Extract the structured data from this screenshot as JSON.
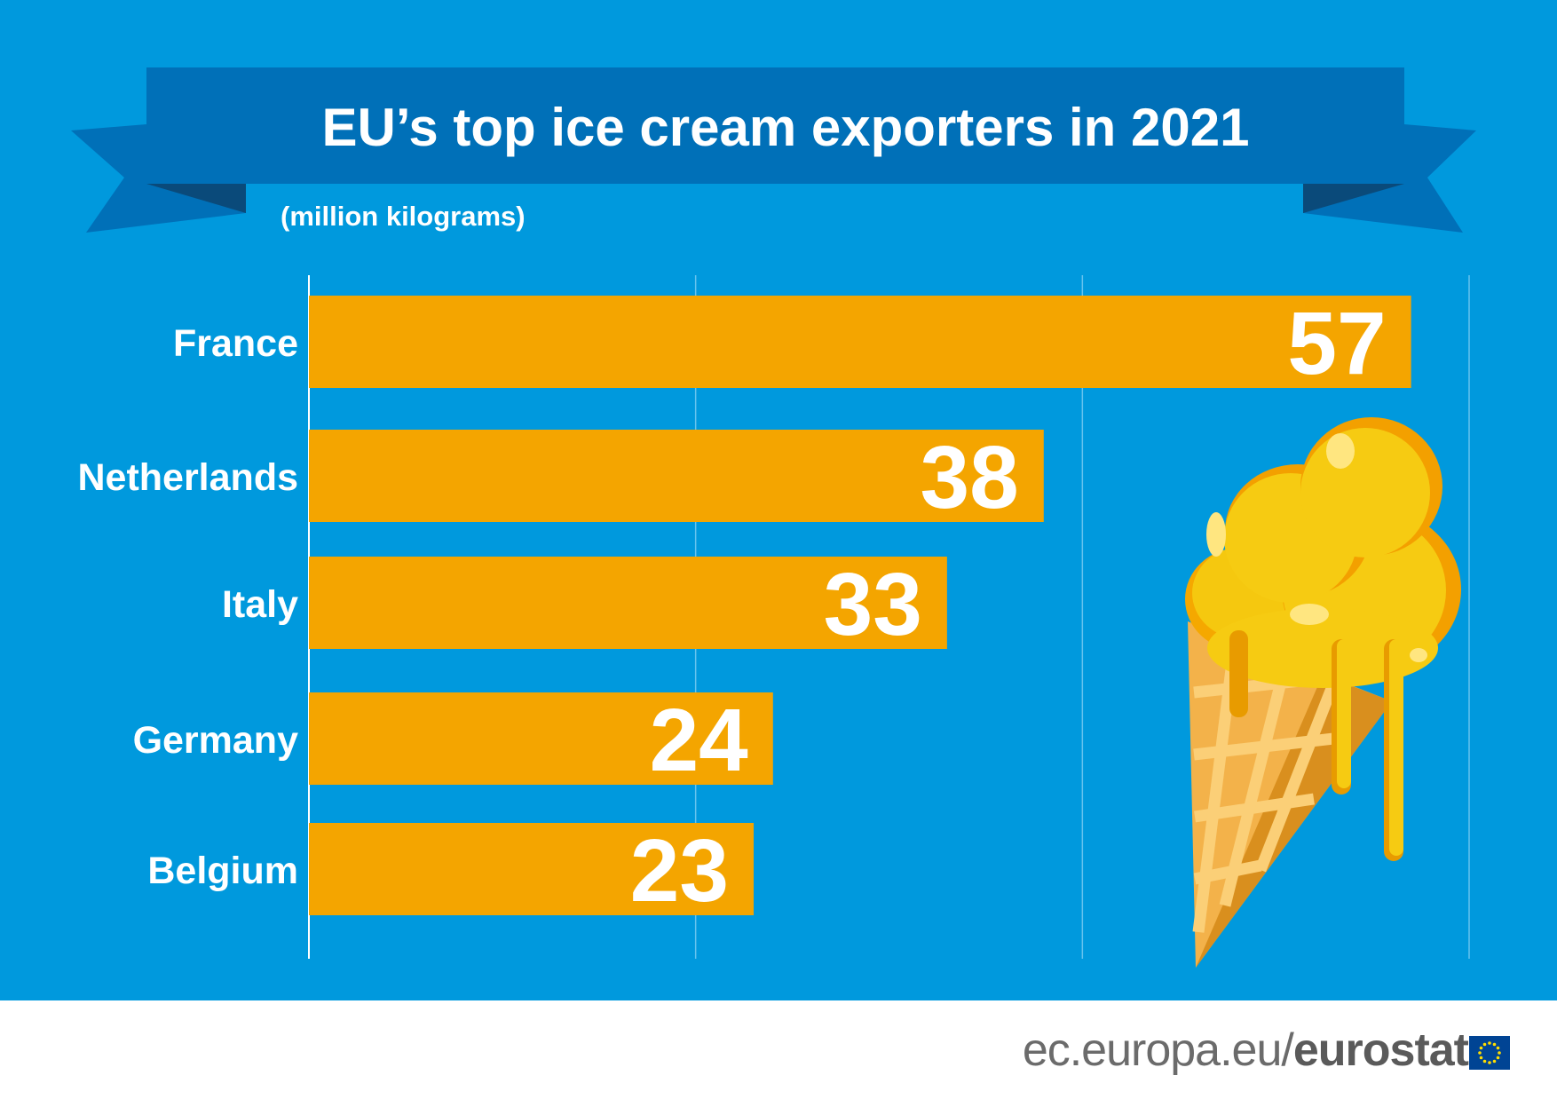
{
  "chart_data": {
    "type": "bar",
    "orientation": "horizontal",
    "title": "EU’s top ice cream exporters in 2021",
    "unit_label": "(million kilograms)",
    "categories": [
      "France",
      "Netherlands",
      "Italy",
      "Germany",
      "Belgium"
    ],
    "values": [
      57,
      38,
      33,
      24,
      23
    ],
    "xlim": [
      0,
      60
    ],
    "gridlines": [
      0,
      20,
      40,
      60
    ],
    "grid": true
  },
  "colors": {
    "background": "#0099dd",
    "banner": "#0070b8",
    "banner_fold": "#0a5a94",
    "bar": "#f4a500",
    "text": "#ffffff"
  },
  "footer": {
    "source_light": "ec.europa.eu/",
    "source_bold": "eurostat"
  },
  "icons": {
    "illustration": "ice-cream-cone-icon",
    "flag": "eu-flag-icon"
  }
}
